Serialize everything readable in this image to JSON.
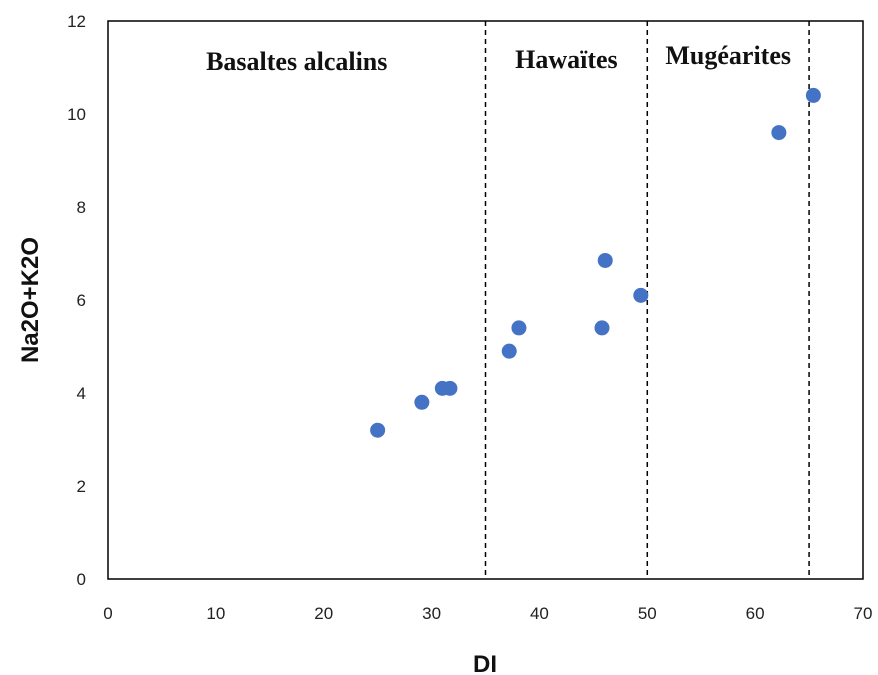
{
  "chart_data": {
    "type": "scatter",
    "xlabel": "DI",
    "ylabel": "Na2O+K2O",
    "xlim": [
      0,
      70
    ],
    "ylim": [
      0,
      12
    ],
    "xticks": [
      0,
      10,
      20,
      30,
      40,
      50,
      60,
      70
    ],
    "yticks": [
      0,
      2,
      4,
      6,
      8,
      10,
      12
    ],
    "grid": false,
    "marker_color": "#4472C4",
    "points": [
      {
        "x": 25.0,
        "y": 3.2
      },
      {
        "x": 29.1,
        "y": 3.8
      },
      {
        "x": 31.0,
        "y": 4.1
      },
      {
        "x": 31.7,
        "y": 4.1
      },
      {
        "x": 37.2,
        "y": 4.9
      },
      {
        "x": 38.1,
        "y": 5.4
      },
      {
        "x": 45.8,
        "y": 5.4
      },
      {
        "x": 46.1,
        "y": 6.85
      },
      {
        "x": 49.4,
        "y": 6.1
      },
      {
        "x": 62.2,
        "y": 9.6
      },
      {
        "x": 65.4,
        "y": 10.4
      }
    ],
    "dividers": [
      {
        "x": 35,
        "style": "dashed"
      },
      {
        "x": 50,
        "style": "dashed"
      },
      {
        "x": 65,
        "style": "dashed"
      }
    ],
    "regions": [
      {
        "label": "Basaltes alcalins",
        "x_from": 0,
        "x_to": 35
      },
      {
        "label": "Hawaïtes",
        "x_from": 35,
        "x_to": 50
      },
      {
        "label": "Mugéarites",
        "x_from": 50,
        "x_to": 65
      }
    ]
  }
}
